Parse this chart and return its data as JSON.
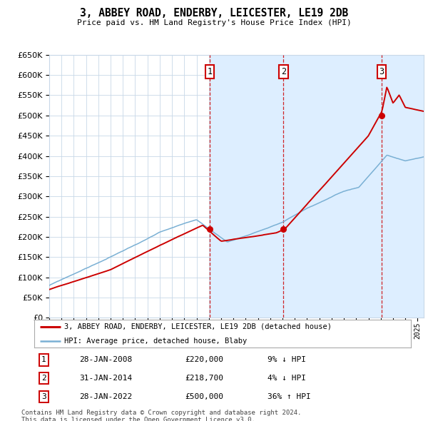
{
  "title": "3, ABBEY ROAD, ENDERBY, LEICESTER, LE19 2DB",
  "subtitle": "Price paid vs. HM Land Registry's House Price Index (HPI)",
  "sale_prices": [
    220000,
    218700,
    500000
  ],
  "sale_labels": [
    "1",
    "2",
    "3"
  ],
  "sale_hpi_pct": [
    "9% ↓ HPI",
    "4% ↓ HPI",
    "36% ↑ HPI"
  ],
  "sale_date_labels": [
    "28-JAN-2008",
    "31-JAN-2014",
    "28-JAN-2022"
  ],
  "sale_price_labels": [
    "£220,000",
    "£218,700",
    "£500,000"
  ],
  "sale_years_float": [
    2008.08,
    2014.08,
    2022.08
  ],
  "legend_line1": "3, ABBEY ROAD, ENDERBY, LEICESTER, LE19 2DB (detached house)",
  "legend_line2": "HPI: Average price, detached house, Blaby",
  "footer1": "Contains HM Land Registry data © Crown copyright and database right 2024.",
  "footer2": "This data is licensed under the Open Government Licence v3.0.",
  "red_color": "#cc0000",
  "blue_color": "#7ab0d4",
  "shade_color": "#ddeeff",
  "grid_color": "#c8d8e8",
  "bg_color": "#ffffff",
  "ylim": [
    0,
    650000
  ],
  "yticks": [
    0,
    50000,
    100000,
    150000,
    200000,
    250000,
    300000,
    350000,
    400000,
    450000,
    500000,
    550000,
    600000,
    650000
  ],
  "xmin": 1995,
  "xmax": 2025.5
}
